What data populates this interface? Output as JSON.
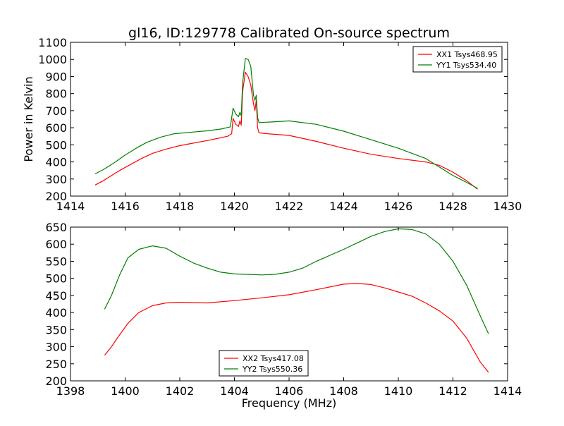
{
  "chart_data": [
    {
      "type": "line",
      "title": "gl16, ID:129778 Calibrated On-source spectrum",
      "xlabel": "",
      "ylabel": "Power in Kelvin",
      "xlim": [
        1414,
        1430
      ],
      "ylim": [
        200,
        1100
      ],
      "x_ticks": [
        1414,
        1416,
        1418,
        1420,
        1422,
        1424,
        1426,
        1428,
        1430
      ],
      "y_ticks": [
        200,
        300,
        400,
        500,
        600,
        700,
        800,
        900,
        1000,
        1100
      ],
      "legend_position": "top-right",
      "series": [
        {
          "name": "XX1 Tsys468.95",
          "color": "#ff0000",
          "points": [
            [
              1414.9,
              265
            ],
            [
              1415.2,
              290
            ],
            [
              1415.5,
              320
            ],
            [
              1415.8,
              350
            ],
            [
              1416.2,
              385
            ],
            [
              1416.6,
              420
            ],
            [
              1417,
              450
            ],
            [
              1417.5,
              475
            ],
            [
              1418,
              495
            ],
            [
              1418.5,
              510
            ],
            [
              1419,
              525
            ],
            [
              1419.4,
              538
            ],
            [
              1419.75,
              550
            ],
            [
              1419.9,
              565
            ],
            [
              1419.95,
              655
            ],
            [
              1420.05,
              620
            ],
            [
              1420.15,
              608
            ],
            [
              1420.2,
              640
            ],
            [
              1420.25,
              615
            ],
            [
              1420.3,
              810
            ],
            [
              1420.4,
              925
            ],
            [
              1420.5,
              900
            ],
            [
              1420.6,
              850
            ],
            [
              1420.7,
              740
            ],
            [
              1420.75,
              700
            ],
            [
              1420.8,
              760
            ],
            [
              1420.85,
              600
            ],
            [
              1420.9,
              570
            ],
            [
              1421.2,
              565
            ],
            [
              1422,
              555
            ],
            [
              1423,
              520
            ],
            [
              1424,
              480
            ],
            [
              1425,
              445
            ],
            [
              1426,
              420
            ],
            [
              1427,
              400
            ],
            [
              1427.5,
              380
            ],
            [
              1428,
              340
            ],
            [
              1428.5,
              290
            ],
            [
              1428.9,
              240
            ]
          ]
        },
        {
          "name": "YY1 Tsys534.40",
          "color": "#008000",
          "points": [
            [
              1414.9,
              330
            ],
            [
              1415.2,
              355
            ],
            [
              1415.6,
              395
            ],
            [
              1416,
              440
            ],
            [
              1416.4,
              480
            ],
            [
              1416.8,
              515
            ],
            [
              1417.3,
              545
            ],
            [
              1417.8,
              565
            ],
            [
              1418.5,
              575
            ],
            [
              1419,
              582
            ],
            [
              1419.5,
              592
            ],
            [
              1419.85,
              605
            ],
            [
              1419.95,
              715
            ],
            [
              1420.05,
              680
            ],
            [
              1420.15,
              665
            ],
            [
              1420.2,
              690
            ],
            [
              1420.25,
              670
            ],
            [
              1420.3,
              860
            ],
            [
              1420.4,
              1005
            ],
            [
              1420.5,
              1000
            ],
            [
              1420.6,
              960
            ],
            [
              1420.7,
              790
            ],
            [
              1420.75,
              760
            ],
            [
              1420.8,
              790
            ],
            [
              1420.85,
              660
            ],
            [
              1420.9,
              630
            ],
            [
              1421.5,
              635
            ],
            [
              1422,
              640
            ],
            [
              1423,
              620
            ],
            [
              1424,
              580
            ],
            [
              1425,
              530
            ],
            [
              1426,
              480
            ],
            [
              1427,
              420
            ],
            [
              1427.5,
              370
            ],
            [
              1428,
              320
            ],
            [
              1428.5,
              280
            ],
            [
              1428.9,
              245
            ]
          ]
        }
      ]
    },
    {
      "type": "line",
      "title": "",
      "xlabel": "Frequency (MHz)",
      "ylabel": "",
      "xlim": [
        1398,
        1414
      ],
      "ylim": [
        200,
        650
      ],
      "x_ticks": [
        1398,
        1400,
        1402,
        1404,
        1406,
        1408,
        1410,
        1412,
        1414
      ],
      "y_ticks": [
        200,
        250,
        300,
        350,
        400,
        450,
        500,
        550,
        600,
        650
      ],
      "legend_position": "lower-center",
      "series": [
        {
          "name": "XX2 Tsys417.08",
          "color": "#ff0000",
          "points": [
            [
              1399.25,
              275
            ],
            [
              1399.5,
              300
            ],
            [
              1399.8,
              335
            ],
            [
              1400.1,
              368
            ],
            [
              1400.5,
              400
            ],
            [
              1401,
              420
            ],
            [
              1401.5,
              428
            ],
            [
              1402,
              430
            ],
            [
              1403,
              428
            ],
            [
              1404,
              435
            ],
            [
              1405,
              443
            ],
            [
              1406,
              452
            ],
            [
              1407,
              467
            ],
            [
              1408,
              483
            ],
            [
              1408.5,
              485
            ],
            [
              1409,
              482
            ],
            [
              1409.5,
              472
            ],
            [
              1410,
              460
            ],
            [
              1410.5,
              448
            ],
            [
              1411,
              428
            ],
            [
              1411.5,
              405
            ],
            [
              1412,
              375
            ],
            [
              1412.5,
              325
            ],
            [
              1413,
              255
            ],
            [
              1413.3,
              225
            ]
          ]
        },
        {
          "name": "YY2 Tsys550.36",
          "color": "#008000",
          "points": [
            [
              1399.25,
              410
            ],
            [
              1399.5,
              450
            ],
            [
              1399.8,
              510
            ],
            [
              1400.1,
              560
            ],
            [
              1400.5,
              585
            ],
            [
              1401,
              595
            ],
            [
              1401.5,
              588
            ],
            [
              1402,
              565
            ],
            [
              1402.5,
              545
            ],
            [
              1403,
              530
            ],
            [
              1403.5,
              518
            ],
            [
              1404,
              513
            ],
            [
              1405,
              510
            ],
            [
              1405.5,
              512
            ],
            [
              1406,
              518
            ],
            [
              1406.5,
              530
            ],
            [
              1407,
              550
            ],
            [
              1408,
              585
            ],
            [
              1409,
              623
            ],
            [
              1409.5,
              637
            ],
            [
              1410,
              645
            ],
            [
              1410.5,
              643
            ],
            [
              1411,
              630
            ],
            [
              1411.5,
              600
            ],
            [
              1412,
              550
            ],
            [
              1412.5,
              480
            ],
            [
              1413,
              390
            ],
            [
              1413.3,
              338
            ]
          ]
        }
      ]
    }
  ]
}
